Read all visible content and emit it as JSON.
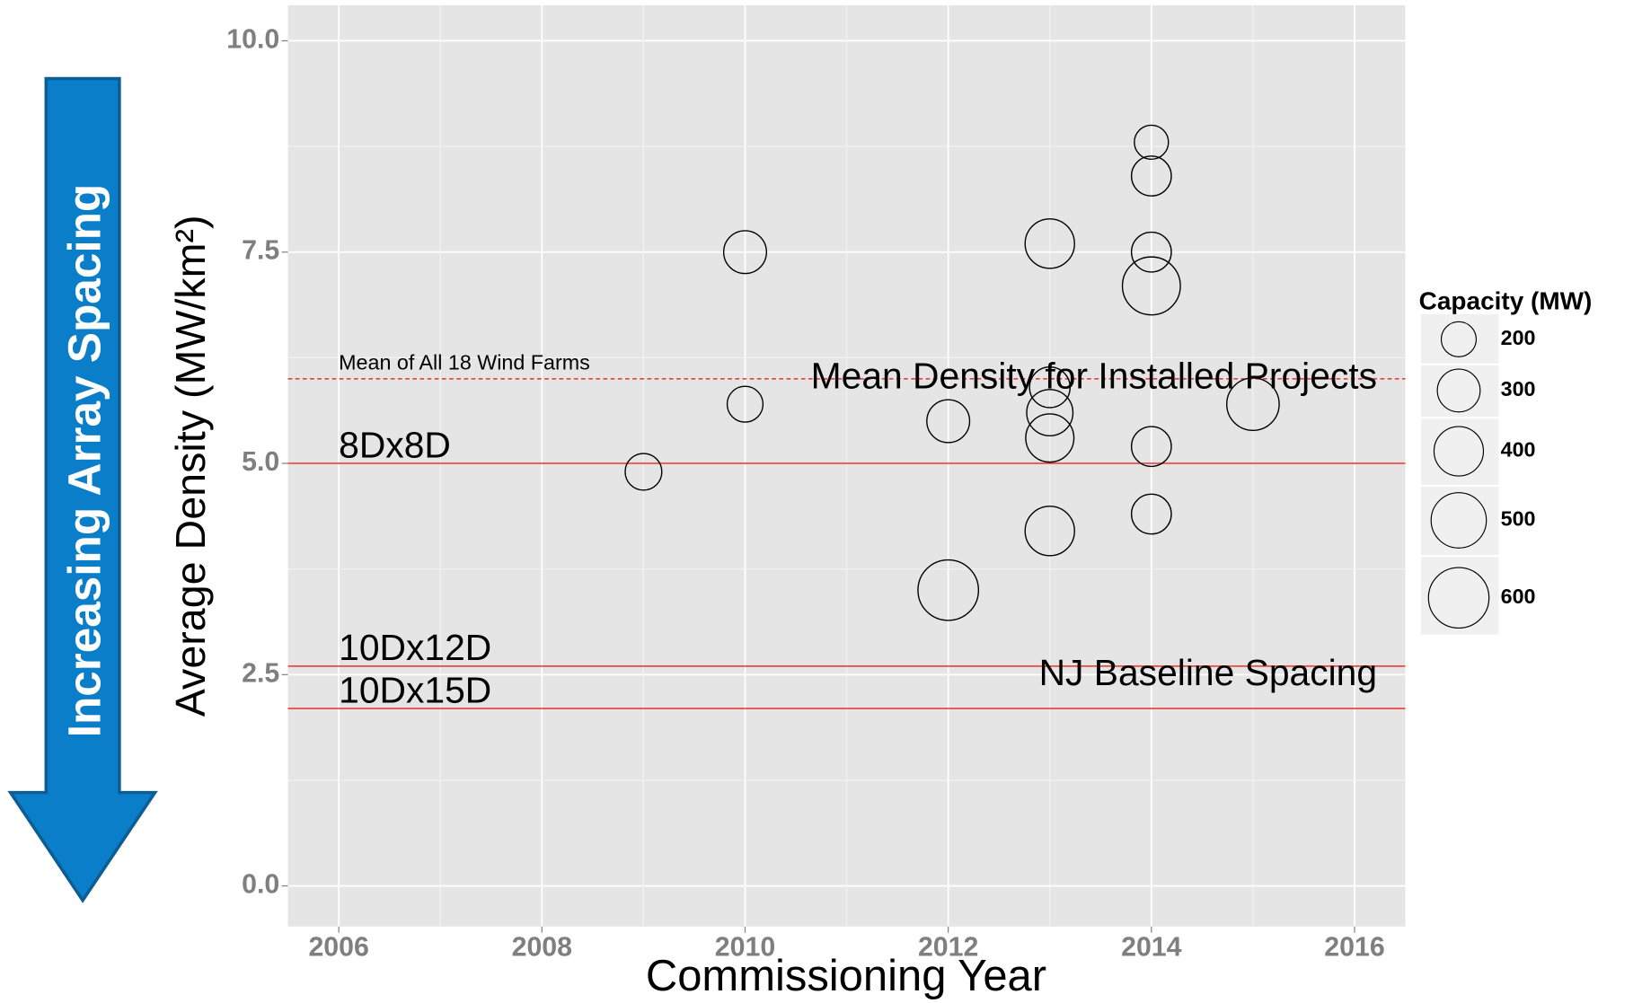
{
  "chart_data": {
    "type": "scatter",
    "x_label": "Commissioning Year",
    "y_label": "Average Density (MW/km²)",
    "xlim": [
      2005.5,
      2016.5
    ],
    "ylim": [
      -0.48,
      10.42
    ],
    "xticks": [
      2006,
      2008,
      2010,
      2012,
      2014,
      2016
    ],
    "yticks": [
      {
        "value": 0,
        "label": "0.0"
      },
      {
        "value": 2.5,
        "label": "2.5"
      },
      {
        "value": 5,
        "label": "5.0"
      },
      {
        "value": 7.5,
        "label": "7.5"
      },
      {
        "value": 10,
        "label": "10.0"
      }
    ],
    "x_minor_grid": [
      2007,
      2009,
      2011,
      2013,
      2015
    ],
    "y_minor_grid": [
      1.25,
      3.75,
      6.25,
      8.75
    ],
    "grid": true,
    "series": [
      {
        "name": "Capacity (MW)",
        "color": "#000000",
        "x": [
          2009,
          2010,
          2010,
          2012,
          2012,
          2013,
          2013,
          2013,
          2013,
          2013,
          2014,
          2014,
          2014,
          2014,
          2014,
          2014,
          2015
        ],
        "values": [
          4.9,
          7.5,
          5.7,
          5.5,
          3.5,
          7.6,
          5.9,
          5.6,
          5.3,
          4.2,
          8.8,
          8.4,
          7.5,
          7.1,
          5.2,
          4.4,
          5.7
        ],
        "sizes": [
          220,
          300,
          210,
          300,
          600,
          400,
          270,
          350,
          380,
          400,
          190,
          260,
          260,
          550,
          260,
          260,
          450
        ]
      }
    ],
    "size_legend": {
      "title": "Capacity (MW)",
      "values": [
        200,
        300,
        400,
        500,
        600
      ]
    },
    "reference_lines": [
      {
        "value": 6.0,
        "style": "dashed",
        "color": "#e8302a",
        "labels": [
          "Mean of All 18 Wind Farms",
          "Mean Density for Installed Projects"
        ]
      },
      {
        "value": 5.0,
        "style": "solid",
        "color": "#e8302a",
        "labels": [
          "8Dx8D"
        ]
      },
      {
        "value": 2.6,
        "style": "solid",
        "color": "#e8302a",
        "labels": [
          "10Dx12D",
          "NJ Baseline Spacing"
        ]
      },
      {
        "value": 2.1,
        "style": "solid",
        "color": "#e8302a",
        "labels": [
          "10Dx15D"
        ]
      }
    ],
    "arrow_label": "Increasing Array Spacing"
  }
}
